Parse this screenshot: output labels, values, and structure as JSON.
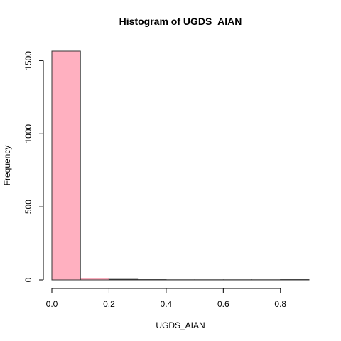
{
  "chart_data": {
    "type": "bar",
    "title": "Histogram of UGDS_AIAN",
    "xlabel": "UGDS_AIAN",
    "ylabel": "Frequency",
    "bins": [
      [
        0.0,
        0.1
      ],
      [
        0.1,
        0.2
      ],
      [
        0.2,
        0.3
      ],
      [
        0.3,
        0.4
      ],
      [
        0.4,
        0.5
      ],
      [
        0.5,
        0.6
      ],
      [
        0.6,
        0.7
      ],
      [
        0.7,
        0.8
      ],
      [
        0.8,
        0.9
      ]
    ],
    "values": [
      1565,
      12,
      4,
      2,
      1,
      1,
      1,
      1,
      2
    ],
    "xlim": [
      0.0,
      0.9
    ],
    "ylim": [
      0,
      1565
    ],
    "xticks": [
      "0.0",
      "0.2",
      "0.4",
      "0.6",
      "0.8"
    ],
    "xtick_values": [
      0.0,
      0.2,
      0.4,
      0.6,
      0.8
    ],
    "yticks": [
      "0",
      "500",
      "1000",
      "1500"
    ],
    "ytick_values": [
      0,
      500,
      1000,
      1500
    ],
    "bar_color": "#ffb0c0",
    "border_color": "#333333",
    "grid": false
  }
}
